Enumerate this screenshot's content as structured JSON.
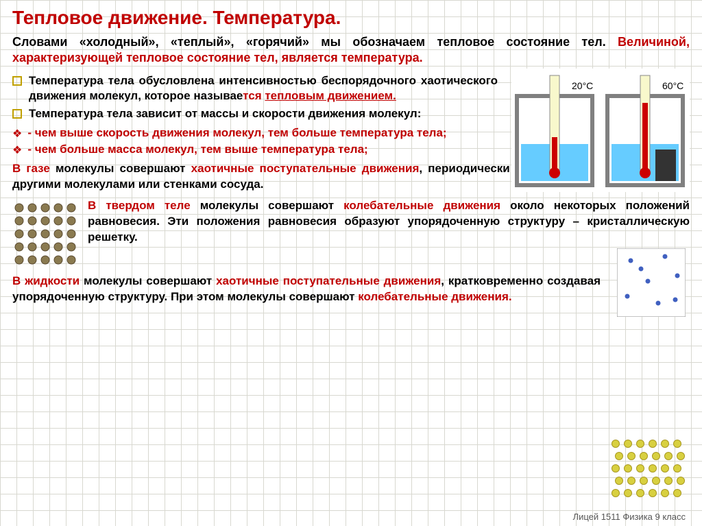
{
  "title": "Тепловое движение. Температура.",
  "intro": {
    "p1": "Словами «холодный», «теплый», «горячий» мы обозначаем тепловое состояние тел. ",
    "p2": "Величиной, характеризующей тепловое состояние тел, является температура."
  },
  "bullet1": {
    "a": "Температура тела обусловлена интенсивностью беспорядочного хаотического движения молекул, которое называе",
    "b": "тся ",
    "c": "тепловым движением."
  },
  "bullet2": "Температура тела зависит от массы и скорости движения молекул:",
  "d1": "- чем выше скорость движения молекул, тем больше температура тела;",
  "d2": "- чем больше масса молекул, тем выше температура тела;",
  "gas": {
    "a": "В газе",
    "b": " молекулы совершают ",
    "c": "хаотичные поступательные движения",
    "d": ", периодически сталкиваясь с другими молекулами или стенками сосуда."
  },
  "solid": {
    "a": "В твердом теле",
    "b": " молекулы совершают ",
    "c": "колебательные движения",
    "d": "  около некоторых положений равновесия. Эти положения равновесия образуют упорядоченную структуру –  кристаллическую решетку."
  },
  "liquid": {
    "a": "В жидкости",
    "b": " молекулы совершают ",
    "c": "хаотичные поступательные движения",
    "d": ", кратковременно создавая упорядоченную структуру. При этом молекулы совершают ",
    "e": "колебательные движения."
  },
  "footer": "Лицей 1511 Физика 9 класс",
  "thermo": {
    "label_left": "20°C",
    "label_right": "60°C",
    "colors": {
      "frame": "#808080",
      "liquid": "#66ccff",
      "heater": "#333333",
      "mercury": "#cc0000",
      "glass": "#f8f8cc"
    }
  },
  "icons": {
    "solid_color": "#8a7a50",
    "gas_color": "#4060c0",
    "liquid_color": "#d8d040",
    "grid_n": 5
  }
}
